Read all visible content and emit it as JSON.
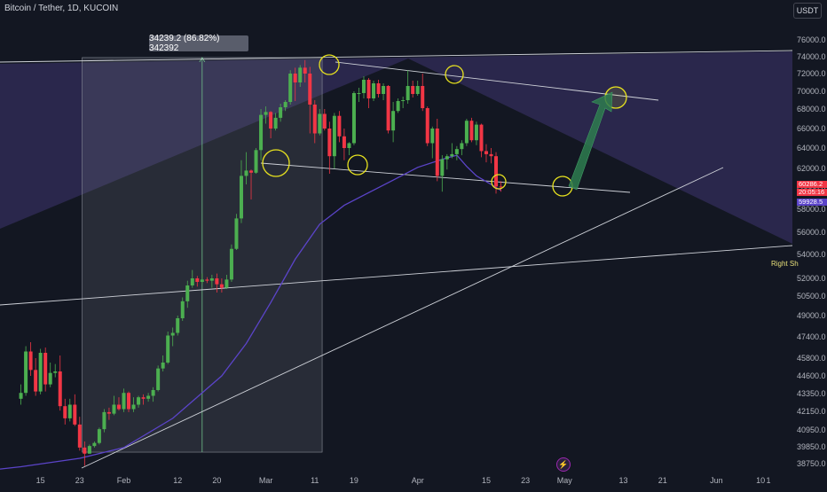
{
  "header": {
    "title": "Bitcoin / Tether, 1D, KUCOIN"
  },
  "currency": {
    "label": "USDT"
  },
  "measure": {
    "label": "34239.2 (86.82%) 342392"
  },
  "annotation": {
    "right_shoulder": "Right Sh"
  },
  "price_tags": {
    "last": "60286.2",
    "countdown": "20:05:16",
    "ma": "59928.5"
  },
  "colors": {
    "up": "#26a69a",
    "up_bright": "#4caf50",
    "down": "#f23645",
    "ma_line": "#5b44c9",
    "highlight": "#e8e31f",
    "zone": "#2f2a54",
    "arrow": "#2e7d4f"
  },
  "chart_data": {
    "type": "candlestick",
    "title": "Bitcoin / Tether, 1D, KUCOIN",
    "ylim": [
      38000,
      77000
    ],
    "y_ticks": [
      76000,
      74000,
      72000,
      70000,
      68000,
      66000,
      64000,
      62000,
      60000,
      58000,
      56000,
      54000,
      52000,
      50500,
      49000,
      47400,
      45800,
      44600,
      43350,
      42150,
      40950,
      39850,
      38750
    ],
    "y_tick_labels": [
      "76000.0",
      "74000.0",
      "72000.0",
      "70000.0",
      "68000.0",
      "66000.0",
      "64000.0",
      "62000.0",
      "60000.0",
      "58000.0",
      "56000.0",
      "54000.0",
      "52000.0",
      "50500.0",
      "49000.0",
      "47400.0",
      "45800.0",
      "44600.0",
      "43350.0",
      "42150.0",
      "40950.0",
      "39850.0",
      "38750.0"
    ],
    "x_ticks": [
      {
        "label": "15",
        "day": -17
      },
      {
        "label": "23",
        "day": -9
      },
      {
        "label": "Feb",
        "day": 0
      },
      {
        "label": "12",
        "day": 11
      },
      {
        "label": "20",
        "day": 19
      },
      {
        "label": "Mar",
        "day": 29
      },
      {
        "label": "11",
        "day": 39
      },
      {
        "label": "19",
        "day": 47
      },
      {
        "label": "Apr",
        "day": 60
      },
      {
        "label": "15",
        "day": 74
      },
      {
        "label": "23",
        "day": 82
      },
      {
        "label": "May",
        "day": 90
      },
      {
        "label": "13",
        "day": 102
      },
      {
        "label": "21",
        "day": 110
      },
      {
        "label": "Jun",
        "day": 121
      },
      {
        "label": "10",
        "day": 130
      },
      {
        "label": "1",
        "day": 138
      }
    ],
    "candles": [
      [
        -21,
        43000,
        44000,
        42600,
        43400
      ],
      [
        -20,
        43400,
        46700,
        43200,
        46300
      ],
      [
        -19,
        46300,
        47000,
        44600,
        45000
      ],
      [
        -18,
        45000,
        45800,
        43200,
        43500
      ],
      [
        -17,
        43500,
        46500,
        43300,
        46200
      ],
      [
        -16,
        46200,
        46600,
        43500,
        44000
      ],
      [
        -15,
        44000,
        45500,
        43800,
        44800
      ],
      [
        -14,
        44800,
        45400,
        44500,
        44900
      ],
      [
        -13,
        44900,
        46000,
        42200,
        42500
      ],
      [
        -12,
        42500,
        43000,
        41300,
        41700
      ],
      [
        -11,
        41700,
        43000,
        41500,
        42600
      ],
      [
        -10,
        42600,
        43300,
        41200,
        41300
      ],
      [
        -9,
        41300,
        41800,
        39600,
        39800
      ],
      [
        -8,
        39800,
        40200,
        38600,
        39400
      ],
      [
        -7,
        39400,
        40000,
        39400,
        39900
      ],
      [
        -6,
        39900,
        40200,
        39800,
        40100
      ],
      [
        -5,
        40100,
        41100,
        40000,
        41000
      ],
      [
        -4,
        41000,
        42300,
        40800,
        42100
      ],
      [
        -3,
        42100,
        42400,
        41600,
        42000
      ],
      [
        -2,
        42000,
        43200,
        41900,
        42600
      ],
      [
        -1,
        42600,
        43100,
        42200,
        42300
      ],
      [
        0,
        42300,
        43700,
        42100,
        43400
      ],
      [
        1,
        43400,
        43500,
        42100,
        42300
      ],
      [
        2,
        42300,
        43100,
        42100,
        42600
      ],
      [
        3,
        42600,
        43200,
        42400,
        43100
      ],
      [
        4,
        43100,
        43300,
        42600,
        43000
      ],
      [
        5,
        43000,
        43400,
        42800,
        43200
      ],
      [
        6,
        43200,
        43800,
        42800,
        43600
      ],
      [
        7,
        43600,
        45300,
        43500,
        45100
      ],
      [
        8,
        45100,
        46000,
        44900,
        45500
      ],
      [
        9,
        45500,
        47800,
        45400,
        47500
      ],
      [
        10,
        47500,
        48100,
        46700,
        47700
      ],
      [
        11,
        47700,
        49000,
        47500,
        48800
      ],
      [
        12,
        48800,
        50400,
        48600,
        50100
      ],
      [
        13,
        50100,
        51800,
        49600,
        51400
      ],
      [
        14,
        51400,
        52700,
        51200,
        52000
      ],
      [
        15,
        52000,
        52200,
        51300,
        51700
      ],
      [
        16,
        51700,
        52400,
        51500,
        51900
      ],
      [
        17,
        51900,
        52100,
        51600,
        51800
      ],
      [
        18,
        51800,
        52300,
        51200,
        52000
      ],
      [
        19,
        52000,
        52400,
        50800,
        51500
      ],
      [
        20,
        51500,
        52000,
        50800,
        51200
      ],
      [
        21,
        51200,
        52300,
        51100,
        51900
      ],
      [
        22,
        51900,
        54900,
        51700,
        54500
      ],
      [
        23,
        54500,
        57600,
        54400,
        57200
      ],
      [
        24,
        57200,
        62800,
        56800,
        61300
      ],
      [
        25,
        61300,
        63600,
        60500,
        61800
      ],
      [
        26,
        61800,
        61900,
        59000,
        61600
      ],
      [
        27,
        61600,
        64000,
        61500,
        63800
      ],
      [
        28,
        63800,
        68000,
        62800,
        67400
      ],
      [
        29,
        67400,
        68300,
        66500,
        67700
      ],
      [
        30,
        67700,
        67800,
        65000,
        66000
      ],
      [
        31,
        66000,
        67600,
        65800,
        67100
      ],
      [
        32,
        67100,
        68600,
        66700,
        68200
      ],
      [
        33,
        68200,
        69000,
        67800,
        68800
      ],
      [
        34,
        68800,
        72400,
        68500,
        72000
      ],
      [
        35,
        72000,
        72700,
        68900,
        71000
      ],
      [
        36,
        71000,
        73000,
        70500,
        72700
      ],
      [
        37,
        72700,
        73600,
        71000,
        72000
      ],
      [
        38,
        72000,
        72800,
        65500,
        68500
      ],
      [
        39,
        68500,
        69000,
        64500,
        65500
      ],
      [
        40,
        65500,
        68000,
        65300,
        67500
      ],
      [
        41,
        67500,
        68000,
        65800,
        66000
      ],
      [
        42,
        66000,
        66700,
        61500,
        63200
      ],
      [
        43,
        63200,
        67600,
        62000,
        67300
      ],
      [
        44,
        67300,
        67800,
        64600,
        65200
      ],
      [
        45,
        65200,
        66000,
        62800,
        64000
      ],
      [
        46,
        64000,
        64600,
        63300,
        64500
      ],
      [
        47,
        64500,
        70000,
        64300,
        69800
      ],
      [
        48,
        69800,
        70400,
        68800,
        69800
      ],
      [
        49,
        69800,
        71700,
        69200,
        71300
      ],
      [
        50,
        71300,
        71500,
        68100,
        69200
      ],
      [
        51,
        69200,
        71200,
        68900,
        70900
      ],
      [
        52,
        70900,
        71300,
        69300,
        69700
      ],
      [
        53,
        69700,
        70900,
        69000,
        70600
      ],
      [
        54,
        70600,
        70700,
        65500,
        65800
      ],
      [
        55,
        65800,
        68800,
        64600,
        67800
      ],
      [
        56,
        67800,
        69200,
        67600,
        68900
      ],
      [
        57,
        68900,
        69400,
        68100,
        69000
      ],
      [
        58,
        69000,
        72400,
        68600,
        70600
      ],
      [
        59,
        70600,
        71200,
        69300,
        69700
      ],
      [
        60,
        69700,
        71200,
        69500,
        70600
      ],
      [
        61,
        70600,
        72000,
        67800,
        68100
      ],
      [
        62,
        68100,
        68300,
        64200,
        64500
      ],
      [
        63,
        64500,
        66200,
        63000,
        66000
      ],
      [
        64,
        66000,
        67000,
        60800,
        61300
      ],
      [
        65,
        61300,
        63300,
        59800,
        62900
      ],
      [
        66,
        62900,
        63400,
        61900,
        63200
      ],
      [
        67,
        63200,
        64500,
        63000,
        63400
      ],
      [
        68,
        63400,
        64200,
        62800,
        63900
      ],
      [
        69,
        63900,
        64800,
        63300,
        64500
      ],
      [
        70,
        64500,
        67000,
        64200,
        66800
      ],
      [
        71,
        66800,
        67100,
        64600,
        64800
      ],
      [
        72,
        64800,
        66700,
        64300,
        66400
      ],
      [
        73,
        66400,
        66500,
        63100,
        63700
      ],
      [
        74,
        63700,
        64400,
        62600,
        63400
      ],
      [
        75,
        63400,
        64000,
        62500,
        63200
      ],
      [
        76,
        63200,
        63600,
        59600,
        60300
      ],
      [
        77,
        60300,
        60800,
        59800,
        60286
      ]
    ],
    "ma_line": [
      [
        -21,
        38550
      ],
      [
        -9,
        39100
      ],
      [
        0,
        39800
      ],
      [
        10,
        41700
      ],
      [
        20,
        44600
      ],
      [
        25,
        46900
      ],
      [
        30,
        50000
      ],
      [
        35,
        53600
      ],
      [
        40,
        56700
      ],
      [
        45,
        58400
      ],
      [
        50,
        59700
      ],
      [
        55,
        60900
      ],
      [
        60,
        62100
      ],
      [
        65,
        62900
      ],
      [
        68,
        63300
      ],
      [
        70,
        62200
      ],
      [
        72,
        61300
      ],
      [
        75,
        60500
      ],
      [
        77,
        59928
      ]
    ],
    "last_price": 60286.2,
    "ma_value": 59928.5
  }
}
